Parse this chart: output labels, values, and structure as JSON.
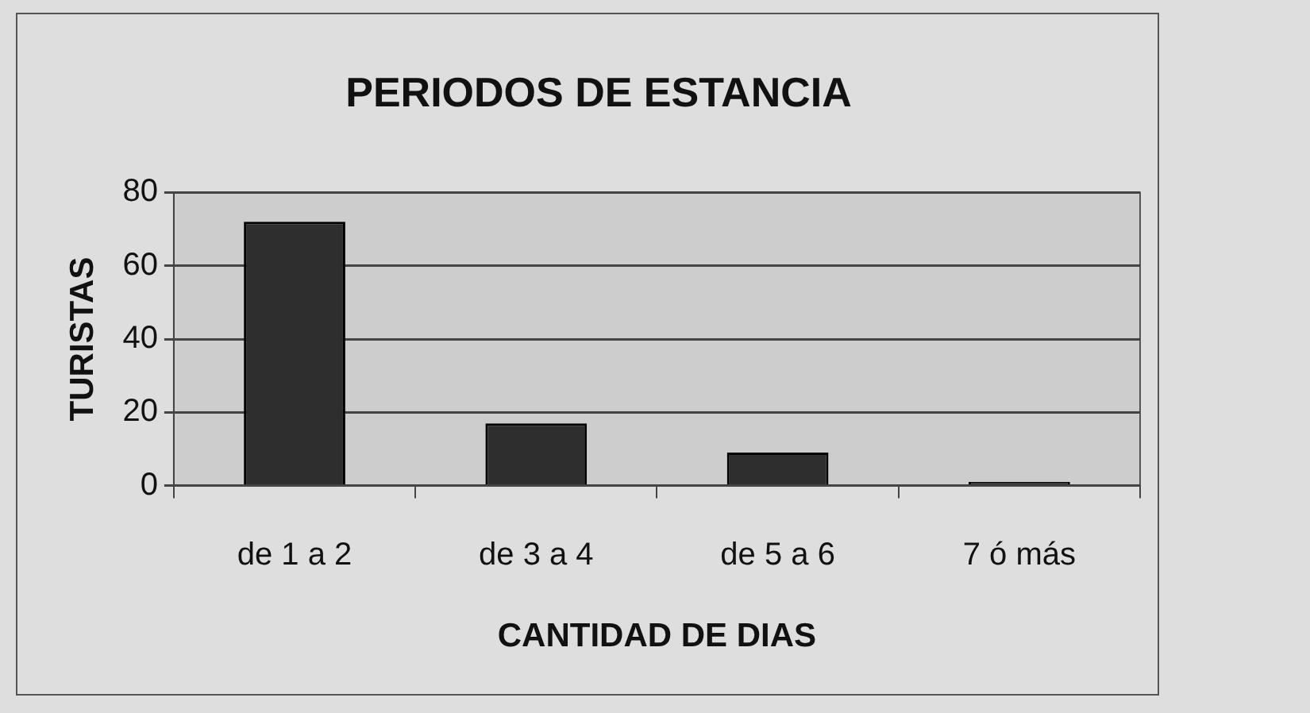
{
  "chart_data": {
    "type": "bar",
    "title": "PERIODOS DE ESTANCIA",
    "xlabel": "CANTIDAD DE DIAS",
    "ylabel": "TURISTAS",
    "categories": [
      "de 1 a 2",
      "de 3 a 4",
      "de 5 a 6",
      "7 ó más"
    ],
    "values": [
      72,
      17,
      9,
      1
    ],
    "color": "#2e2e2e",
    "ylim": [
      0,
      80
    ],
    "yticks": [
      0,
      20,
      40,
      60,
      80
    ],
    "grid": "y"
  }
}
